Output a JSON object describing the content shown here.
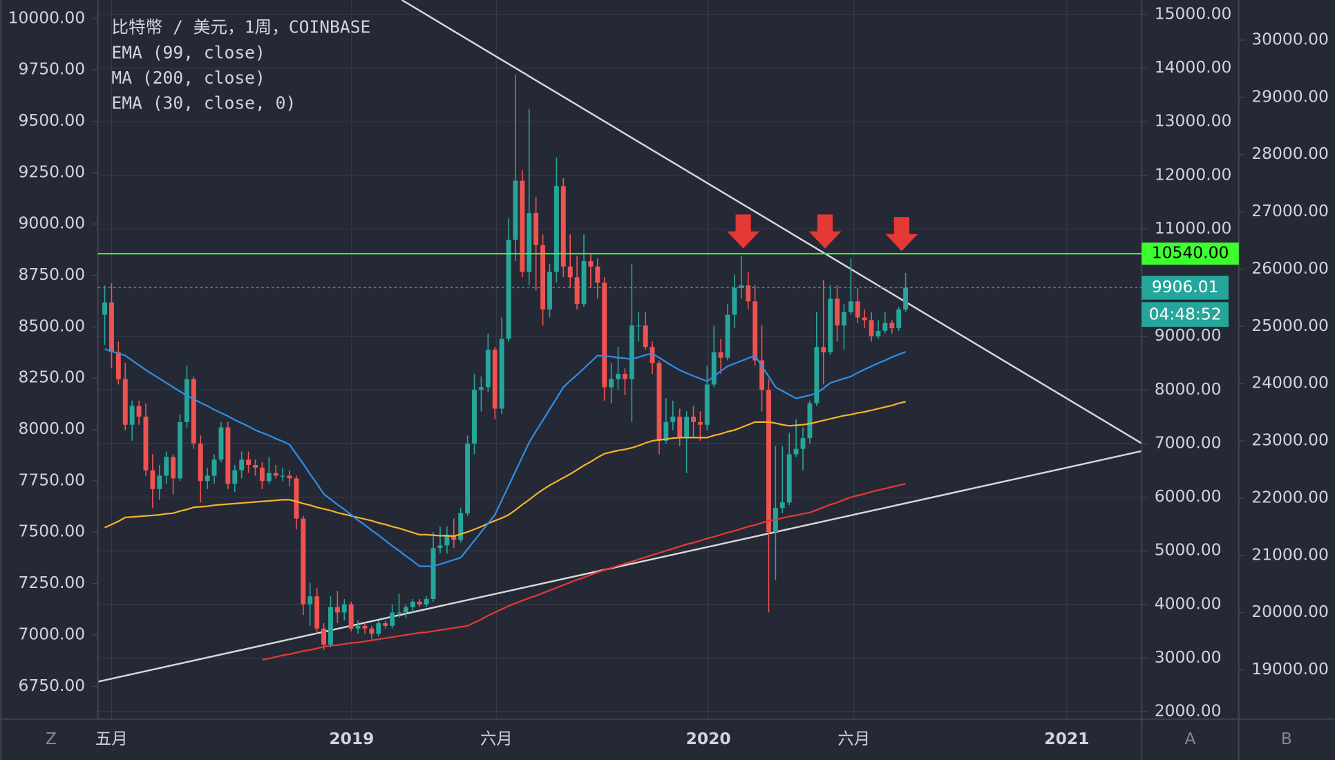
{
  "chart_data": {
    "type": "candlestick",
    "title": "比特幣 / 美元，1周，COINBASE",
    "up_color": "#26a69a",
    "down_color": "#ef5350",
    "grid": true,
    "candles": [
      [
        9400,
        9950,
        8840,
        9630
      ],
      [
        9630,
        9990,
        8400,
        8700
      ],
      [
        8700,
        8900,
        8100,
        8200
      ],
      [
        8200,
        8500,
        7250,
        7350
      ],
      [
        7350,
        7800,
        7050,
        7700
      ],
      [
        7700,
        7800,
        7350,
        7500
      ],
      [
        7500,
        7750,
        6400,
        6500
      ],
      [
        6500,
        6800,
        5800,
        6150
      ],
      [
        6150,
        6600,
        5950,
        6400
      ],
      [
        6400,
        6850,
        6250,
        6750
      ],
      [
        6750,
        6800,
        6050,
        6350
      ],
      [
        6350,
        7550,
        6300,
        7400
      ],
      [
        7400,
        8450,
        7300,
        8200
      ],
      [
        8200,
        8250,
        6900,
        7000
      ],
      [
        7000,
        7150,
        5900,
        6300
      ],
      [
        6300,
        6550,
        6150,
        6400
      ],
      [
        6400,
        6800,
        6250,
        6700
      ],
      [
        6700,
        7400,
        6650,
        7300
      ],
      [
        7300,
        7400,
        6150,
        6250
      ],
      [
        6250,
        6600,
        6100,
        6500
      ],
      [
        6500,
        6850,
        6350,
        6700
      ],
      [
        6700,
        6850,
        6450,
        6600
      ],
      [
        6600,
        6700,
        6400,
        6550
      ],
      [
        6550,
        6650,
        6150,
        6300
      ],
      [
        6300,
        6750,
        6250,
        6450
      ],
      [
        6450,
        6600,
        6350,
        6400
      ],
      [
        6400,
        6550,
        6300,
        6400
      ],
      [
        6400,
        6500,
        6200,
        6350
      ],
      [
        6350,
        6400,
        5400,
        5600
      ],
      [
        5600,
        5650,
        3800,
        4000
      ],
      [
        4000,
        4400,
        3600,
        4150
      ],
      [
        4150,
        4300,
        3450,
        3550
      ],
      [
        3550,
        3650,
        3150,
        3250
      ],
      [
        3250,
        4150,
        3200,
        3950
      ],
      [
        3950,
        4250,
        3650,
        3850
      ],
      [
        3850,
        4100,
        3700,
        4000
      ],
      [
        4000,
        4050,
        3500,
        3550
      ],
      [
        3550,
        3700,
        3450,
        3600
      ],
      [
        3600,
        3650,
        3450,
        3550
      ],
      [
        3550,
        3600,
        3350,
        3450
      ],
      [
        3450,
        3700,
        3400,
        3650
      ],
      [
        3650,
        3700,
        3550,
        3600
      ],
      [
        3600,
        4000,
        3550,
        3850
      ],
      [
        3850,
        4200,
        3750,
        3850
      ],
      [
        3850,
        4000,
        3750,
        3950
      ],
      [
        3950,
        4100,
        3850,
        4050
      ],
      [
        4050,
        4100,
        3950,
        4000
      ],
      [
        4000,
        4150,
        3950,
        4100
      ],
      [
        4100,
        5350,
        4050,
        5050
      ],
      [
        5050,
        5450,
        4950,
        5100
      ],
      [
        5100,
        5450,
        4950,
        5300
      ],
      [
        5300,
        5600,
        5050,
        5200
      ],
      [
        5200,
        5800,
        5150,
        5700
      ],
      [
        5700,
        7150,
        5650,
        7000
      ],
      [
        7000,
        8300,
        6800,
        8000
      ],
      [
        8000,
        8250,
        7600,
        8050
      ],
      [
        8050,
        9050,
        7950,
        8750
      ],
      [
        8750,
        8800,
        7450,
        7650
      ],
      [
        7650,
        9350,
        7550,
        8950
      ],
      [
        8950,
        11200,
        8900,
        10800
      ],
      [
        10800,
        13880,
        10400,
        11900
      ],
      [
        11900,
        12100,
        10100,
        10200
      ],
      [
        10200,
        13240,
        9950,
        11300
      ],
      [
        11300,
        11600,
        9850,
        10700
      ],
      [
        10700,
        10900,
        9200,
        9500
      ],
      [
        9500,
        10350,
        9350,
        10200
      ],
      [
        10200,
        12330,
        10000,
        11800
      ],
      [
        11800,
        11950,
        10100,
        10300
      ],
      [
        10300,
        10900,
        9900,
        10100
      ],
      [
        10100,
        10500,
        9500,
        9600
      ],
      [
        9600,
        10900,
        9550,
        10400
      ],
      [
        10400,
        10550,
        9900,
        10300
      ],
      [
        10300,
        10450,
        9700,
        10000
      ],
      [
        10000,
        10100,
        7800,
        8050
      ],
      [
        8050,
        8500,
        7750,
        8200
      ],
      [
        8200,
        8800,
        8000,
        8300
      ],
      [
        8300,
        8400,
        7900,
        8200
      ],
      [
        8200,
        10350,
        7400,
        9200
      ],
      [
        9200,
        9450,
        8900,
        9200
      ],
      [
        9200,
        9450,
        8750,
        8800
      ],
      [
        8800,
        8900,
        8300,
        8500
      ],
      [
        8500,
        8550,
        6800,
        7050
      ],
      [
        7050,
        7850,
        7000,
        7400
      ],
      [
        7400,
        7800,
        7250,
        7500
      ],
      [
        7500,
        7650,
        6950,
        7100
      ],
      [
        7100,
        7600,
        6450,
        7500
      ],
      [
        7500,
        7700,
        7100,
        7400
      ],
      [
        7400,
        7600,
        7050,
        7350
      ],
      [
        7350,
        8450,
        7250,
        8100
      ],
      [
        8100,
        9200,
        8050,
        8700
      ],
      [
        8700,
        8950,
        8300,
        8600
      ],
      [
        8600,
        9600,
        8550,
        9400
      ],
      [
        9400,
        10150,
        9150,
        9900
      ],
      [
        9900,
        10500,
        9700,
        9950
      ],
      [
        9950,
        10200,
        9500,
        9650
      ],
      [
        9650,
        9950,
        8450,
        8550
      ],
      [
        8550,
        9200,
        7600,
        8000
      ],
      [
        8000,
        8200,
        3850,
        5350
      ],
      [
        5350,
        6950,
        4450,
        5800
      ],
      [
        5800,
        6950,
        5700,
        5900
      ],
      [
        5900,
        7200,
        5850,
        6800
      ],
      [
        6800,
        7450,
        6750,
        6900
      ],
      [
        6900,
        7300,
        6500,
        7100
      ],
      [
        7100,
        7800,
        7000,
        7750
      ],
      [
        7750,
        9450,
        7700,
        8800
      ],
      [
        8800,
        10050,
        8100,
        8700
      ],
      [
        8700,
        9950,
        8650,
        9700
      ],
      [
        9700,
        9950,
        8900,
        9200
      ],
      [
        9200,
        9600,
        8750,
        9450
      ],
      [
        9450,
        10450,
        9400,
        9650
      ],
      [
        9650,
        9900,
        9250,
        9350
      ],
      [
        9350,
        9500,
        9150,
        9300
      ],
      [
        9300,
        9450,
        8900,
        9000
      ],
      [
        9000,
        9300,
        8950,
        9100
      ],
      [
        9100,
        9450,
        9050,
        9250
      ],
      [
        9250,
        9300,
        9050,
        9150
      ],
      [
        9150,
        9550,
        9100,
        9500
      ],
      [
        9500,
        10180,
        9450,
        9906.01
      ]
    ],
    "series": [
      {
        "name": "EMA (99, close)",
        "color": "#f5b32a",
        "values": [
          5430,
          5490,
          5550,
          5620,
          5630,
          5640,
          5650,
          5660,
          5670,
          5690,
          5700,
          5740,
          5770,
          5810,
          5820,
          5830,
          5850,
          5860,
          5870,
          5880,
          5890,
          5900,
          5910,
          5920,
          5930,
          5940,
          5950,
          5950,
          5920,
          5880,
          5850,
          5810,
          5780,
          5750,
          5710,
          5680,
          5650,
          5620,
          5590,
          5560,
          5520,
          5490,
          5450,
          5420,
          5380,
          5340,
          5300,
          5300,
          5290,
          5280,
          5280,
          5270,
          5310,
          5350,
          5400,
          5450,
          5510,
          5560,
          5610,
          5670,
          5760,
          5860,
          5950,
          6050,
          6140,
          6220,
          6290,
          6360,
          6430,
          6510,
          6590,
          6660,
          6740,
          6810,
          6840,
          6870,
          6890,
          6920,
          6960,
          7010,
          7050,
          7070,
          7080,
          7100,
          7110,
          7110,
          7110,
          7110,
          7110,
          7150,
          7180,
          7220,
          7250,
          7300,
          7350,
          7400,
          7400,
          7400,
          7380,
          7350,
          7330,
          7340,
          7350,
          7370,
          7400,
          7430,
          7460,
          7490,
          7520,
          7540,
          7570,
          7590,
          7620,
          7650,
          7680,
          7710,
          7750,
          7780
        ]
      },
      {
        "name": "MA (200, close)",
        "color": "#e53935",
        "values": [
          null,
          null,
          null,
          null,
          null,
          null,
          null,
          null,
          null,
          null,
          null,
          null,
          null,
          null,
          null,
          null,
          null,
          null,
          null,
          null,
          null,
          null,
          null,
          2970,
          2990,
          3020,
          3050,
          3070,
          3100,
          3130,
          3150,
          3180,
          3210,
          3230,
          3240,
          3260,
          3280,
          3290,
          3310,
          3330,
          3350,
          3370,
          3390,
          3410,
          3430,
          3450,
          3470,
          3480,
          3500,
          3520,
          3540,
          3560,
          3580,
          3600,
          3660,
          3720,
          3790,
          3850,
          3910,
          3970,
          4020,
          4070,
          4120,
          4160,
          4210,
          4260,
          4310,
          4360,
          4410,
          4460,
          4500,
          4550,
          4600,
          4640,
          4680,
          4720,
          4760,
          4800,
          4840,
          4880,
          4920,
          4960,
          5000,
          5040,
          5080,
          5120,
          5150,
          5190,
          5230,
          5260,
          5300,
          5340,
          5370,
          5410,
          5450,
          5480,
          5520,
          5560,
          5580,
          5610,
          5640,
          5660,
          5690,
          5710,
          5760,
          5810,
          5860,
          5900,
          5950,
          6000,
          6030,
          6060,
          6100,
          6130,
          6160,
          6190,
          6220,
          6250
        ]
      },
      {
        "name": "EMA (30, close, 0)",
        "color": "#2f8fe8",
        "values": [
          8760,
          8720,
          8680,
          8640,
          8550,
          8460,
          8370,
          8290,
          8210,
          8130,
          8050,
          7970,
          7890,
          7830,
          7760,
          7700,
          7630,
          7570,
          7510,
          7440,
          7380,
          7320,
          7250,
          7200,
          7150,
          7090,
          7040,
          6980,
          6800,
          6620,
          6430,
          6250,
          6060,
          5960,
          5860,
          5770,
          5670,
          5570,
          5480,
          5380,
          5290,
          5190,
          5090,
          5000,
          4900,
          4810,
          4710,
          4710,
          4710,
          4750,
          4790,
          4830,
          4870,
          5030,
          5190,
          5350,
          5510,
          5670,
          5940,
          6210,
          6480,
          6750,
          7020,
          7230,
          7430,
          7640,
          7840,
          8050,
          8170,
          8280,
          8400,
          8520,
          8640,
          8630,
          8620,
          8600,
          8590,
          8570,
          8610,
          8650,
          8680,
          8600,
          8520,
          8440,
          8370,
          8310,
          8260,
          8210,
          8160,
          8250,
          8350,
          8440,
          8490,
          8540,
          8590,
          8640,
          8440,
          8250,
          8050,
          7980,
          7910,
          7840,
          7870,
          7900,
          7940,
          8030,
          8130,
          8170,
          8210,
          8250,
          8320,
          8380,
          8440,
          8500,
          8550,
          8610,
          8660,
          8710
        ]
      }
    ],
    "x_labels": [
      "五月",
      "2019",
      "六月",
      "2020",
      "六月",
      "2021"
    ],
    "ylim": [
      1860,
      15270
    ],
    "yticks": [
      {
        "value": 2000,
        "label": "2000.00"
      },
      {
        "value": 3000,
        "label": "3000.00"
      },
      {
        "value": 4000,
        "label": "4000.00"
      },
      {
        "value": 5000,
        "label": "5000.00"
      },
      {
        "value": 6000,
        "label": "6000.00"
      },
      {
        "value": 7000,
        "label": "7000.00"
      },
      {
        "value": 8000,
        "label": "8000.00"
      },
      {
        "value": 9000,
        "label": "9000.00"
      },
      {
        "value": 11000,
        "label": "11000.00"
      },
      {
        "value": 12000,
        "label": "12000.00"
      },
      {
        "value": 13000,
        "label": "13000.00"
      },
      {
        "value": 14000,
        "label": "14000.00"
      },
      {
        "value": 15000,
        "label": "15000.00"
      }
    ],
    "y2lim": [
      18140,
      30700
    ],
    "y2ticks": [
      {
        "value": 19000,
        "label": "19000.00"
      },
      {
        "value": 20000,
        "label": "20000.00"
      },
      {
        "value": 21000,
        "label": "21000.00"
      },
      {
        "value": 22000,
        "label": "22000.00"
      },
      {
        "value": 23000,
        "label": "23000.00"
      },
      {
        "value": 24000,
        "label": "24000.00"
      },
      {
        "value": 25000,
        "label": "25000.00"
      },
      {
        "value": 26000,
        "label": "26000.00"
      },
      {
        "value": 27000,
        "label": "27000.00"
      },
      {
        "value": 28000,
        "label": "28000.00"
      },
      {
        "value": 29000,
        "label": "29000.00"
      },
      {
        "value": 30000,
        "label": "30000.00"
      }
    ],
    "y_left_lim": [
      6590,
      10090
    ],
    "y_left_ticks": [
      {
        "value": 6750,
        "label": "6750.00"
      },
      {
        "value": 7000,
        "label": "7000.00"
      },
      {
        "value": 7250,
        "label": "7250.00"
      },
      {
        "value": 7500,
        "label": "7500.00"
      },
      {
        "value": 7750,
        "label": "7750.00"
      },
      {
        "value": 8000,
        "label": "8000.00"
      },
      {
        "value": 8250,
        "label": "8250.00"
      },
      {
        "value": 8500,
        "label": "8500.00"
      },
      {
        "value": 8750,
        "label": "8750.00"
      },
      {
        "value": 9000,
        "label": "9000.00"
      },
      {
        "value": 9250,
        "label": "9250.00"
      },
      {
        "value": 9500,
        "label": "9500.00"
      },
      {
        "value": 9750,
        "label": "9750.00"
      },
      {
        "value": 10000,
        "label": "10000.00"
      }
    ],
    "level": {
      "value": 10540,
      "label": "10540.00",
      "color": "#3dff2e"
    },
    "countdown": "04:48:52",
    "axis_buttons": [
      "Z",
      "A",
      "B"
    ]
  }
}
